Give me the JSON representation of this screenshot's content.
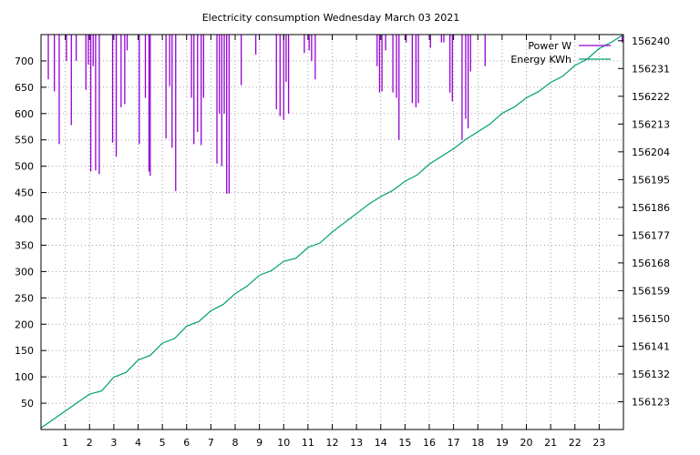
{
  "chart_data": {
    "type": "line",
    "title": "Electricity consumption Wednesday March 03 2021",
    "x": {
      "range": [
        0,
        24
      ],
      "ticks": [
        1,
        2,
        3,
        4,
        5,
        6,
        7,
        8,
        9,
        10,
        11,
        12,
        13,
        14,
        15,
        16,
        17,
        18,
        19,
        20,
        21,
        22,
        23
      ],
      "grid": true
    },
    "y_left": {
      "range": [
        0,
        750
      ],
      "ticks": [
        50,
        100,
        150,
        200,
        250,
        300,
        350,
        400,
        450,
        500,
        550,
        600,
        650,
        700
      ],
      "grid": true
    },
    "y_right": {
      "range": [
        156114,
        156242
      ],
      "ticks": [
        156123,
        156132,
        156141,
        156150,
        156159,
        156168,
        156177,
        156186,
        156195,
        156204,
        156213,
        156222,
        156231,
        156240
      ]
    },
    "legend": {
      "position": "top-right"
    },
    "series": [
      {
        "name": "Power W",
        "axis": "y_left",
        "color": "#9400d3",
        "style": "impulses-from-top",
        "clipped_above": 750,
        "points": [
          [
            0.3,
            665
          ],
          [
            0.55,
            642
          ],
          [
            0.75,
            542
          ],
          [
            1.05,
            700
          ],
          [
            1.25,
            578
          ],
          [
            1.45,
            700
          ],
          [
            1.85,
            645
          ],
          [
            1.95,
            693
          ],
          [
            2.05,
            490
          ],
          [
            2.15,
            690
          ],
          [
            2.25,
            492
          ],
          [
            2.4,
            485
          ],
          [
            2.95,
            545
          ],
          [
            3.1,
            518
          ],
          [
            3.3,
            612
          ],
          [
            3.45,
            618
          ],
          [
            3.55,
            720
          ],
          [
            4.05,
            542
          ],
          [
            4.3,
            630
          ],
          [
            4.45,
            490
          ],
          [
            4.5,
            482
          ],
          [
            5.15,
            553
          ],
          [
            5.3,
            652
          ],
          [
            5.4,
            535
          ],
          [
            5.55,
            453
          ],
          [
            6.2,
            630
          ],
          [
            6.3,
            542
          ],
          [
            6.45,
            565
          ],
          [
            6.6,
            540
          ],
          [
            6.7,
            630
          ],
          [
            7.25,
            505
          ],
          [
            7.35,
            600
          ],
          [
            7.45,
            500
          ],
          [
            7.55,
            600
          ],
          [
            7.65,
            448
          ],
          [
            7.75,
            448
          ],
          [
            8.25,
            654
          ],
          [
            8.85,
            712
          ],
          [
            9.7,
            608
          ],
          [
            9.85,
            595
          ],
          [
            10.0,
            588
          ],
          [
            10.1,
            660
          ],
          [
            10.2,
            600
          ],
          [
            10.85,
            715
          ],
          [
            11.05,
            720
          ],
          [
            11.15,
            700
          ],
          [
            11.3,
            665
          ],
          [
            13.85,
            690
          ],
          [
            13.95,
            640
          ],
          [
            14.05,
            642
          ],
          [
            14.2,
            720
          ],
          [
            14.5,
            640
          ],
          [
            14.65,
            630
          ],
          [
            14.75,
            550
          ],
          [
            15.05,
            735
          ],
          [
            15.3,
            620
          ],
          [
            15.45,
            612
          ],
          [
            15.55,
            620
          ],
          [
            16.05,
            725
          ],
          [
            16.5,
            735
          ],
          [
            16.6,
            735
          ],
          [
            16.85,
            640
          ],
          [
            16.95,
            623
          ],
          [
            17.35,
            550
          ],
          [
            17.5,
            590
          ],
          [
            17.6,
            572
          ],
          [
            17.7,
            680
          ],
          [
            18.3,
            690
          ],
          [
            23.95,
            735
          ]
        ]
      },
      {
        "name": "Energy KWh",
        "axis": "y_right",
        "color": "#009e73",
        "style": "line",
        "points": [
          [
            0,
            156114.5
          ],
          [
            1,
            156120
          ],
          [
            2,
            156125.5
          ],
          [
            2.5,
            156126.5
          ],
          [
            3,
            156131
          ],
          [
            3.5,
            156132.5
          ],
          [
            4,
            156136.5
          ],
          [
            4.5,
            156138
          ],
          [
            5,
            156142
          ],
          [
            5.5,
            156143.5
          ],
          [
            6,
            156147.5
          ],
          [
            6.5,
            156149
          ],
          [
            7,
            156152.5
          ],
          [
            7.5,
            156154.5
          ],
          [
            8,
            156158
          ],
          [
            8.5,
            156160.5
          ],
          [
            9,
            156164
          ],
          [
            9.5,
            156165.5
          ],
          [
            10,
            156168.5
          ],
          [
            10.5,
            156169.5
          ],
          [
            11,
            156173
          ],
          [
            11.5,
            156174.5
          ],
          [
            12,
            156178
          ],
          [
            12.5,
            156181
          ],
          [
            13,
            156184
          ],
          [
            13.5,
            156187
          ],
          [
            14,
            156189.5
          ],
          [
            14.5,
            156191.5
          ],
          [
            15,
            156194.5
          ],
          [
            15.5,
            156196.5
          ],
          [
            16,
            156200
          ],
          [
            16.5,
            156202.5
          ],
          [
            17,
            156205
          ],
          [
            17.5,
            156208
          ],
          [
            18,
            156210.5
          ],
          [
            18.5,
            156213
          ],
          [
            19,
            156216.5
          ],
          [
            19.5,
            156218.5
          ],
          [
            20,
            156221.5
          ],
          [
            20.5,
            156223.5
          ],
          [
            21,
            156226.5
          ],
          [
            21.5,
            156228.5
          ],
          [
            22,
            156232
          ],
          [
            22.5,
            156234
          ],
          [
            23,
            156237.5
          ],
          [
            23.5,
            156239.5
          ],
          [
            24,
            156242
          ]
        ]
      }
    ]
  }
}
